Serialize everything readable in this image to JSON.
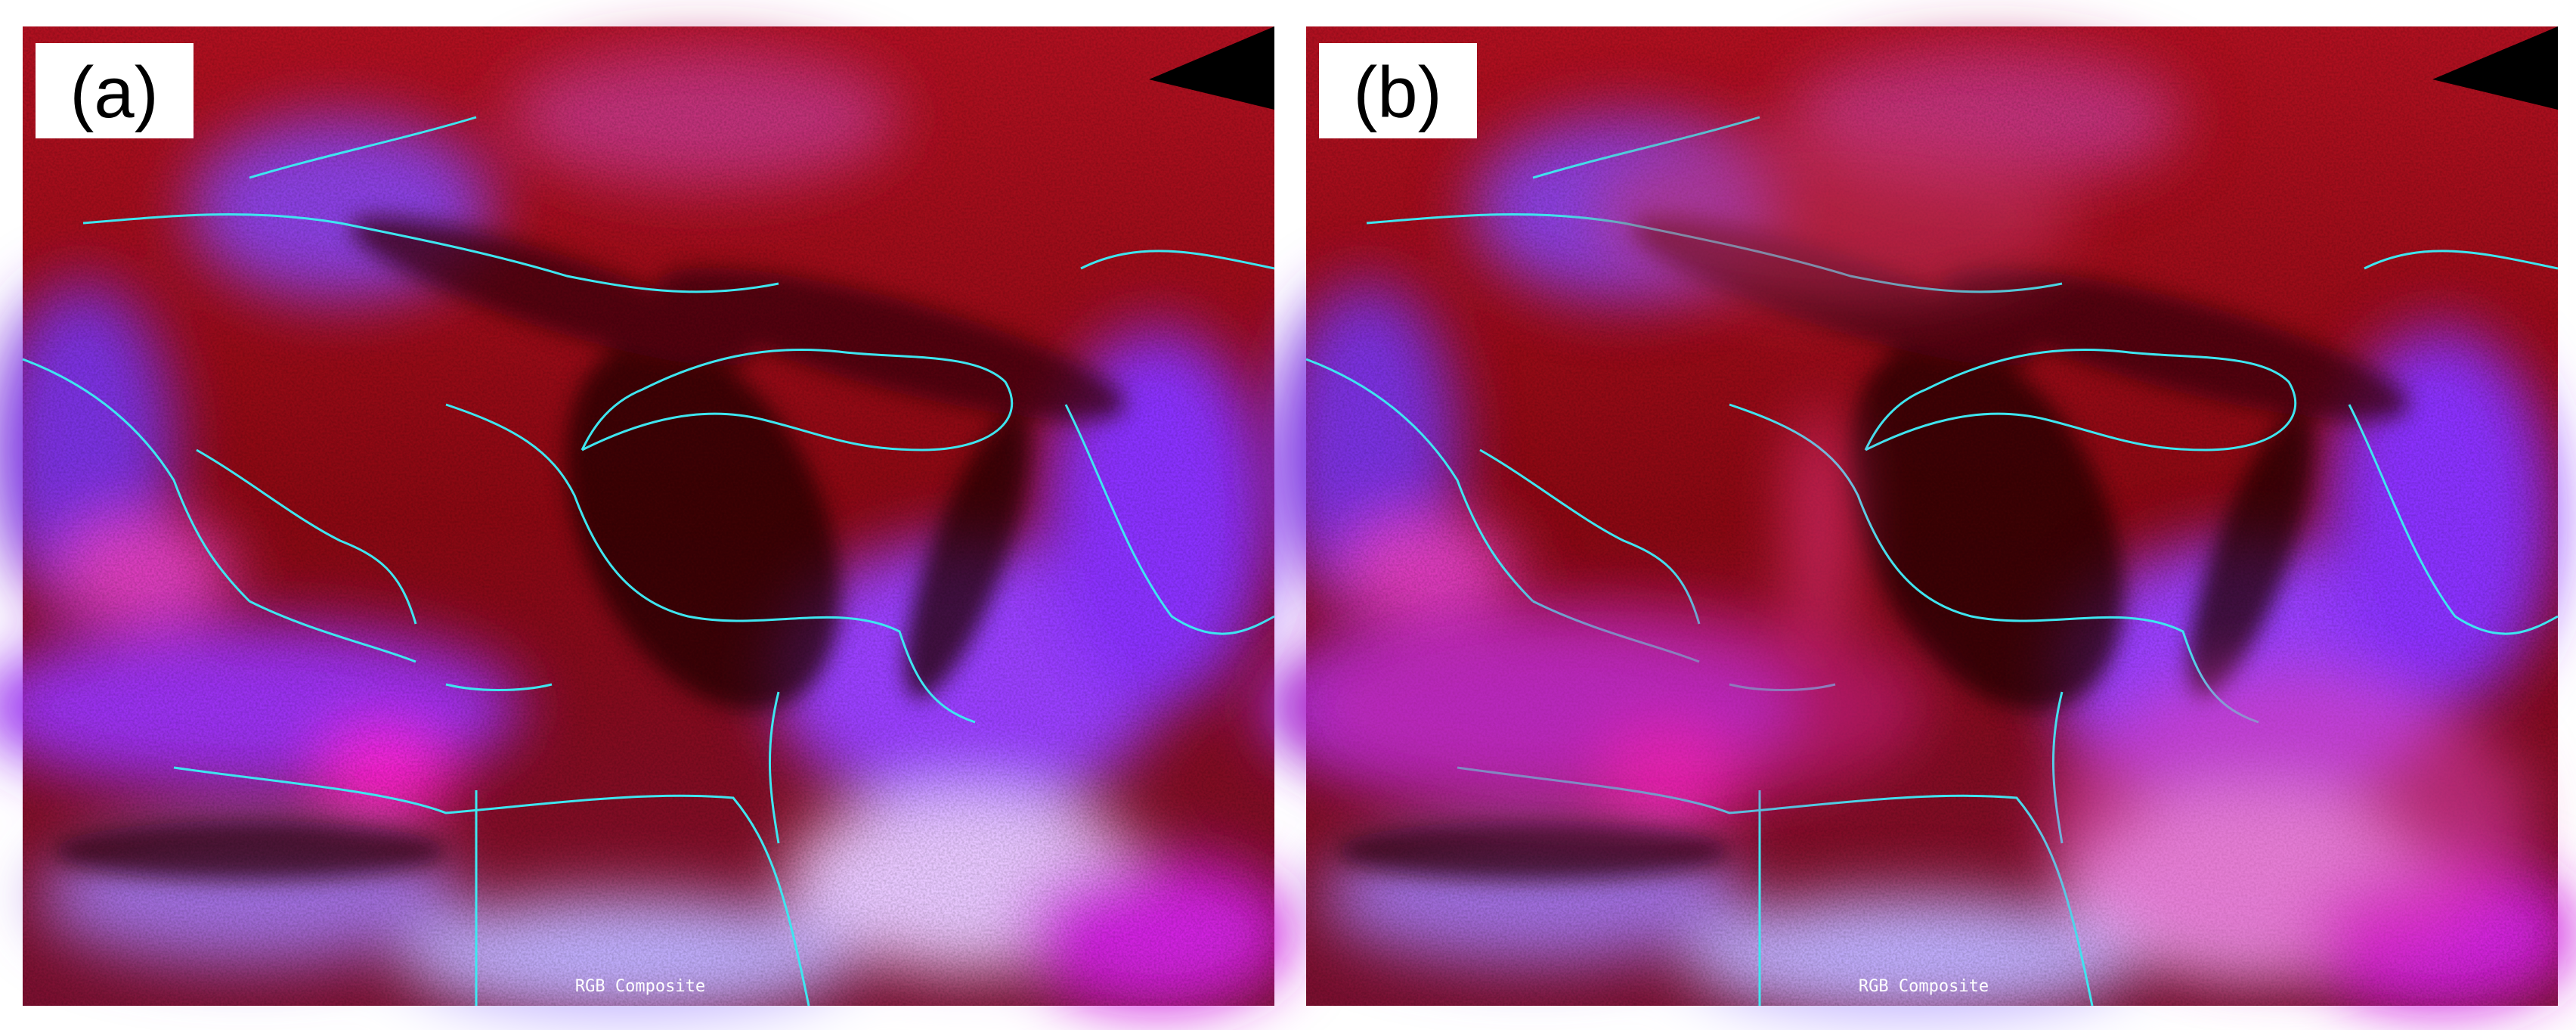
{
  "panels": [
    {
      "label": "(a)",
      "caption": "RGB Composite"
    },
    {
      "label": "(b)",
      "caption": "RGB Composite"
    }
  ]
}
